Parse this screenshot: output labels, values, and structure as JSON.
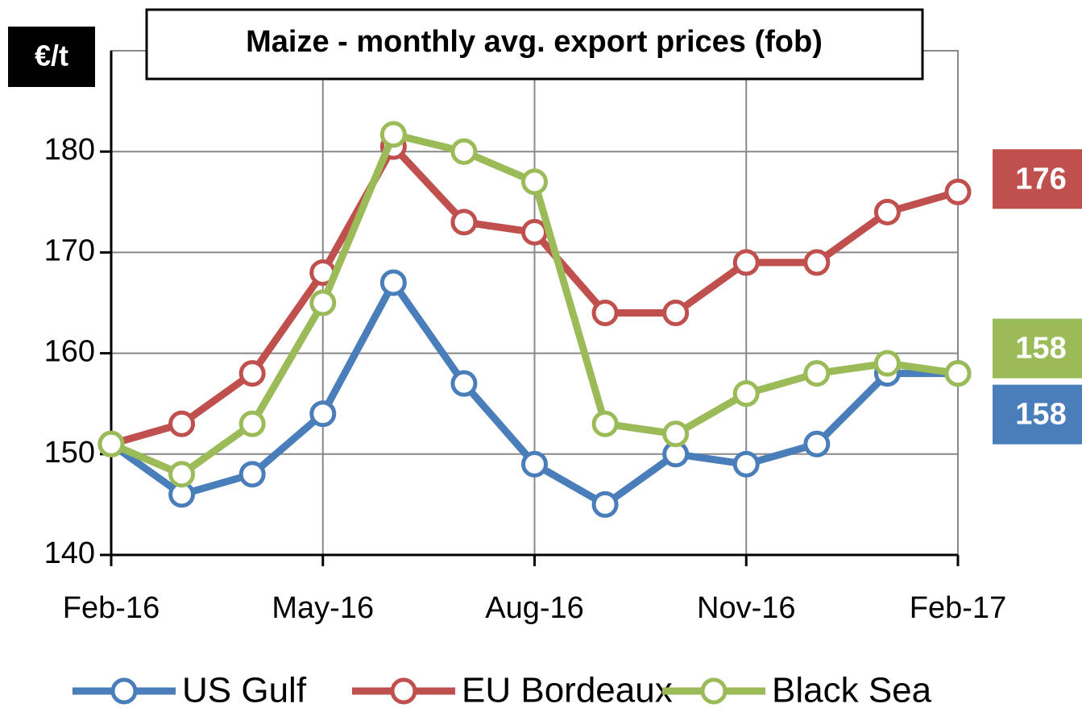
{
  "chart_data": {
    "type": "line",
    "title": "Maize - monthly avg. export prices (fob)",
    "y_label": "€/t",
    "categories": [
      "Feb-16",
      null,
      null,
      "May-16",
      null,
      null,
      "Aug-16",
      null,
      null,
      "Nov-16",
      null,
      null,
      "Feb-17"
    ],
    "series": [
      {
        "name": "US Gulf",
        "color": "#4a7ebb",
        "values": [
          151,
          146,
          148,
          154,
          167,
          157,
          149,
          145,
          150,
          149,
          151,
          158,
          158
        ]
      },
      {
        "name": "EU Bordeaux",
        "color": "#c0504d",
        "values": [
          151,
          153,
          158,
          168,
          180.5,
          173,
          172,
          164,
          164,
          169,
          169,
          174,
          176
        ]
      },
      {
        "name": "Black Sea",
        "color": "#9bbb59",
        "values": [
          151,
          148,
          153,
          165,
          181.7,
          180,
          177,
          153,
          152,
          156,
          158,
          159,
          158
        ]
      }
    ],
    "ylim": [
      140,
      190
    ],
    "yticks": [
      140,
      150,
      160,
      170,
      180
    ],
    "grid": true,
    "legend": "bottom"
  }
}
